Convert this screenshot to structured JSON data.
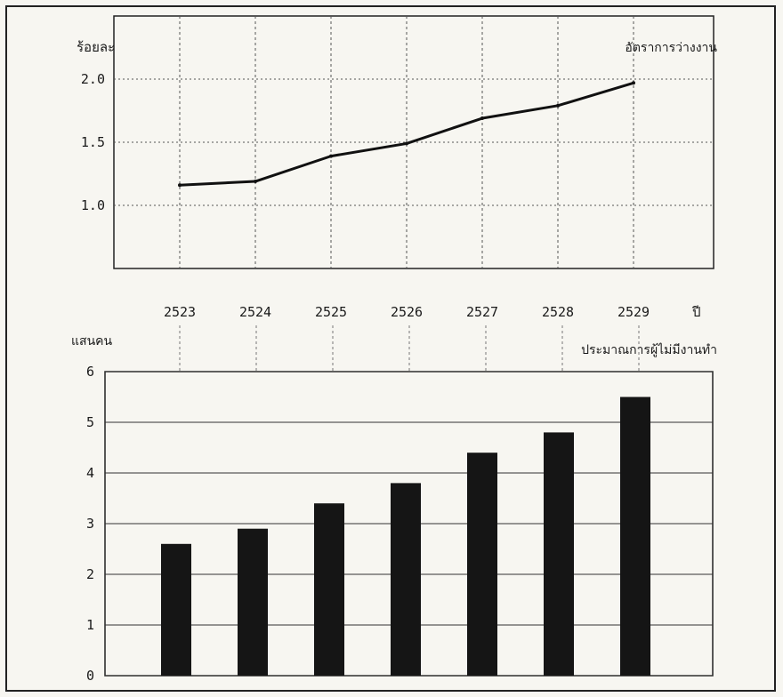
{
  "chart_data": [
    {
      "type": "line",
      "ylabel": "ร้อยละ",
      "series": [
        {
          "name": "อัตราการว่างงาน",
          "values": [
            1.16,
            1.19,
            1.39,
            1.49,
            1.69,
            1.79,
            1.97
          ]
        }
      ],
      "categories": [
        "2523",
        "2524",
        "2525",
        "2526",
        "2527",
        "2528",
        "2529"
      ],
      "xlabel": "ปี",
      "yticks": [
        "1.0",
        "1.5",
        "2.0"
      ],
      "ylim": [
        0.5,
        2.5
      ],
      "grid": "dashed",
      "colors": {
        "line": "#111111"
      }
    },
    {
      "type": "bar",
      "ylabel": "แสนคน",
      "series": [
        {
          "name": "ประมาณการผู้ไม่มีงานทำ",
          "values": [
            2.6,
            2.9,
            3.4,
            3.8,
            4.4,
            4.8,
            5.5
          ]
        }
      ],
      "categories": [
        "2523",
        "2524",
        "2525",
        "2526",
        "2527",
        "2528",
        "2529"
      ],
      "yticks": [
        "0",
        "1",
        "2",
        "3",
        "4",
        "5",
        "6"
      ],
      "ylim": [
        0,
        6
      ],
      "grid": true,
      "colors": {
        "bar": "#151515"
      }
    }
  ]
}
